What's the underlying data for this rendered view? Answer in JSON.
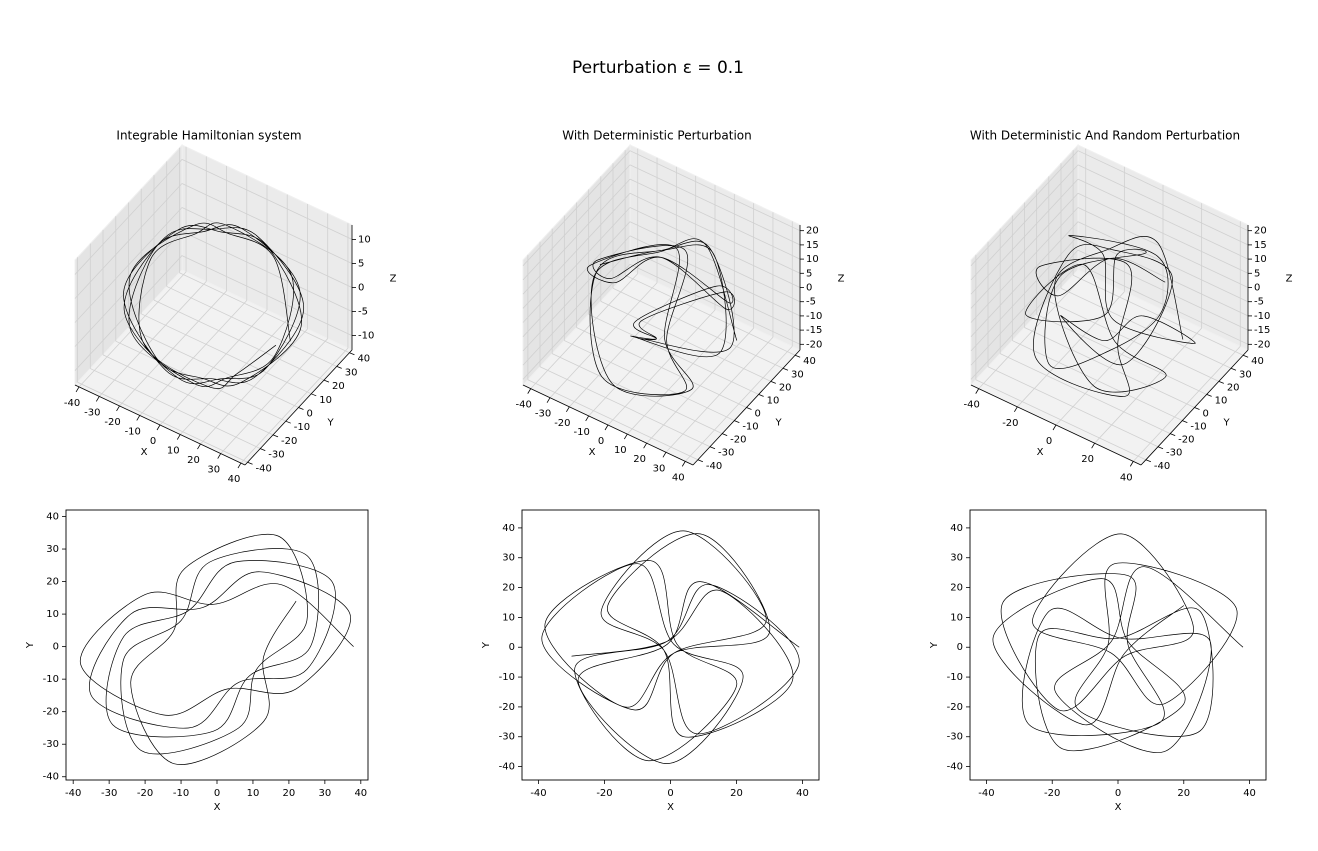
{
  "title": "Perturbation ε = 0.1",
  "chart_data": [
    {
      "type": "line3d",
      "title": "Integrable Hamiltonian system",
      "xlabel": "X",
      "ylabel": "Y",
      "zlabel": "Z",
      "xlim": [
        -42,
        42
      ],
      "ylim": [
        -42,
        42
      ],
      "zlim": [
        -13,
        13
      ],
      "xticks": [
        -40,
        -30,
        -20,
        -10,
        0,
        10,
        20,
        30,
        40
      ],
      "yticks": [
        -40,
        -30,
        -20,
        -10,
        0,
        10,
        20,
        30,
        40
      ],
      "zticks": [
        -10,
        -5,
        0,
        5,
        10
      ],
      "series": [
        {
          "color": "#000000",
          "x": [
            38,
            18,
            -1,
            -20,
            -38,
            -15,
            3,
            22,
            37,
            12,
            -4,
            -24,
            -35,
            -8,
            6,
            25,
            32,
            5,
            -8,
            -26,
            -29,
            -1,
            9,
            26,
            25,
            -2,
            -10,
            -26,
            -21,
            6,
            11,
            25,
            17,
            -9,
            -12,
            -24,
            -12,
            13,
            13,
            22
          ],
          "y": [
            0,
            19,
            13,
            16,
            -5,
            -21,
            -13,
            -13,
            10,
            23,
            12,
            10,
            -15,
            -25,
            -11,
            -7,
            20,
            26,
            11,
            3,
            -24,
            -26,
            -9,
            0,
            28,
            26,
            8,
            -4,
            -32,
            -25,
            -7,
            8,
            34,
            24,
            5,
            -11,
            -36,
            -23,
            -3,
            14
          ],
          "z": [
            0,
            8,
            11,
            8,
            0,
            -8,
            -11,
            -8,
            0,
            8,
            11,
            8,
            0,
            -8,
            -11,
            -8,
            0,
            8,
            11,
            8,
            0,
            -8,
            -11,
            -8,
            0,
            8,
            11,
            8,
            0,
            -8,
            -11,
            -8,
            0,
            8,
            11,
            8,
            0,
            -8,
            -11,
            -8
          ]
        }
      ]
    },
    {
      "type": "line3d",
      "title": "With Deterministic Perturbation",
      "xlabel": "X",
      "ylabel": "Y",
      "zlabel": "Z",
      "xlim": [
        -44,
        44
      ],
      "ylim": [
        -44,
        44
      ],
      "zlim": [
        -22,
        22
      ],
      "xticks": [
        -40,
        -30,
        -20,
        -10,
        0,
        10,
        20,
        30,
        40
      ],
      "yticks": [
        -40,
        -30,
        -20,
        -10,
        0,
        10,
        20,
        30,
        40
      ],
      "zticks": [
        -20,
        -15,
        -10,
        -5,
        0,
        5,
        10,
        15,
        20
      ],
      "series": [
        {
          "color": "#000000",
          "x": [
            39,
            9,
            -1,
            -28,
            -1,
            22,
            1,
            -10,
            -39,
            -11,
            1,
            29,
            4,
            -21,
            -2,
            8,
            39,
            12,
            -1,
            -29,
            -7,
            20,
            2,
            -6,
            -38,
            -14,
            1,
            30,
            9,
            -19,
            -2,
            4,
            37,
            15,
            -1,
            -30
          ],
          "y": [
            0,
            22,
            1,
            -11,
            -39,
            -10,
            1,
            28,
            3,
            -21,
            -2,
            9,
            39,
            12,
            -1,
            -29,
            -5,
            21,
            2,
            -7,
            -38,
            -13,
            1,
            29,
            8,
            -20,
            -2,
            5,
            38,
            14,
            -1,
            -30,
            -11,
            19,
            2,
            -3
          ],
          "z": [
            0,
            14,
            18,
            6,
            -10,
            -18,
            -12,
            4,
            0,
            14,
            18,
            6,
            -10,
            -18,
            -12,
            4,
            0,
            14,
            18,
            6,
            -10,
            -18,
            -12,
            4,
            0,
            14,
            18,
            6,
            -10,
            -18,
            -12,
            4,
            0,
            14,
            18,
            6
          ]
        }
      ]
    },
    {
      "type": "line3d",
      "title": "With Deterministic And Random Perturbation",
      "xlabel": "X",
      "ylabel": "Y",
      "zlabel": "Z",
      "xlim": [
        -44,
        44
      ],
      "ylim": [
        -44,
        44
      ],
      "zlim": [
        -22,
        22
      ],
      "xticks": [
        -40,
        -20,
        0,
        20,
        40
      ],
      "yticks": [
        -40,
        -30,
        -20,
        -10,
        0,
        10,
        20,
        30,
        40
      ],
      "zticks": [
        -20,
        -15,
        -10,
        -5,
        0,
        5,
        10,
        15,
        20
      ],
      "series": [
        {
          "color": "#000000",
          "x": [
            38,
            8,
            -2,
            -19,
            14,
            28,
            1,
            -21,
            -27,
            13,
            3,
            3,
            -35,
            -18,
            2,
            23,
            1,
            -26,
            -2,
            14,
            36,
            -1,
            -3,
            -12,
            25,
            25,
            0,
            -24,
            -17,
            20,
            3,
            -5,
            -38,
            -10,
            2,
            20
          ],
          "y": [
            0,
            27,
            2,
            -15,
            -35,
            2,
            3,
            12,
            -26,
            -25,
            1,
            24,
            15,
            -21,
            -3,
            6,
            38,
            9,
            -2,
            -19,
            13,
            28,
            1,
            -21,
            -28,
            12,
            3,
            4,
            -34,
            -19,
            2,
            23,
            3,
            -26,
            -2,
            14
          ],
          "z": [
            0,
            12,
            18,
            8,
            -8,
            -17,
            -14,
            2,
            0,
            12,
            18,
            8,
            -8,
            -17,
            -14,
            2,
            0,
            12,
            18,
            8,
            -8,
            -17,
            -14,
            2,
            0,
            12,
            18,
            8,
            -8,
            -17,
            -14,
            2,
            0,
            12,
            18,
            8
          ]
        }
      ]
    },
    {
      "type": "line",
      "xlabel": "X",
      "ylabel": "Y",
      "xlim": [
        -42,
        42
      ],
      "ylim": [
        -41,
        42
      ],
      "xticks": [
        -40,
        -30,
        -20,
        -10,
        0,
        10,
        20,
        30,
        40
      ],
      "yticks": [
        -40,
        -30,
        -20,
        -10,
        0,
        10,
        20,
        30,
        40
      ],
      "series": [
        {
          "color": "#000000",
          "x": [
            38,
            18,
            -1,
            -20,
            -38,
            -15,
            3,
            22,
            37,
            12,
            -4,
            -24,
            -35,
            -8,
            6,
            25,
            32,
            5,
            -8,
            -26,
            -29,
            -1,
            9,
            26,
            25,
            -2,
            -10,
            -26,
            -21,
            6,
            11,
            25,
            17,
            -9,
            -12,
            -24,
            -12,
            13,
            13,
            22
          ],
          "y": [
            0,
            19,
            13,
            16,
            -5,
            -21,
            -13,
            -13,
            10,
            23,
            12,
            10,
            -15,
            -25,
            -11,
            -7,
            20,
            26,
            11,
            3,
            -24,
            -26,
            -9,
            0,
            28,
            26,
            8,
            -4,
            -32,
            -25,
            -7,
            8,
            34,
            24,
            5,
            -11,
            -36,
            -23,
            -3,
            14
          ]
        }
      ]
    },
    {
      "type": "line",
      "xlabel": "X",
      "ylabel": "Y",
      "xlim": [
        -45,
        45
      ],
      "ylim": [
        -44.5,
        46
      ],
      "xticks": [
        -40,
        -20,
        0,
        20,
        40
      ],
      "yticks": [
        -40,
        -30,
        -20,
        -10,
        0,
        10,
        20,
        30,
        40
      ],
      "series": [
        {
          "color": "#000000",
          "x": [
            39,
            9,
            -1,
            -28,
            -1,
            22,
            1,
            -10,
            -39,
            -11,
            1,
            29,
            4,
            -21,
            -2,
            8,
            39,
            12,
            -1,
            -29,
            -7,
            20,
            2,
            -6,
            -38,
            -14,
            1,
            30,
            9,
            -19,
            -2,
            4,
            37,
            15,
            -1,
            -30
          ],
          "y": [
            0,
            22,
            1,
            -11,
            -39,
            -10,
            1,
            28,
            3,
            -21,
            -2,
            9,
            39,
            12,
            -1,
            -29,
            -5,
            21,
            2,
            -7,
            -38,
            -13,
            1,
            29,
            8,
            -20,
            -2,
            5,
            38,
            14,
            -1,
            -30,
            -11,
            19,
            2,
            -3
          ]
        }
      ]
    },
    {
      "type": "line",
      "xlabel": "X",
      "ylabel": "Y",
      "xlim": [
        -45,
        45
      ],
      "ylim": [
        -44.5,
        46
      ],
      "xticks": [
        -40,
        -20,
        0,
        20,
        40
      ],
      "yticks": [
        -40,
        -30,
        -20,
        -10,
        0,
        10,
        20,
        30,
        40
      ],
      "series": [
        {
          "color": "#000000",
          "x": [
            38,
            8,
            -2,
            -19,
            14,
            28,
            1,
            -21,
            -27,
            13,
            3,
            3,
            -35,
            -18,
            2,
            23,
            1,
            -26,
            -2,
            14,
            36,
            -1,
            -3,
            -12,
            25,
            25,
            0,
            -24,
            -17,
            20,
            3,
            -5,
            -38,
            -10,
            2,
            20
          ],
          "y": [
            0,
            27,
            2,
            -15,
            -35,
            2,
            3,
            12,
            -26,
            -25,
            1,
            24,
            15,
            -21,
            -3,
            6,
            38,
            9,
            -2,
            -19,
            13,
            28,
            1,
            -21,
            -28,
            12,
            3,
            4,
            -34,
            -19,
            2,
            23,
            3,
            -26,
            -2,
            14
          ]
        }
      ]
    }
  ]
}
